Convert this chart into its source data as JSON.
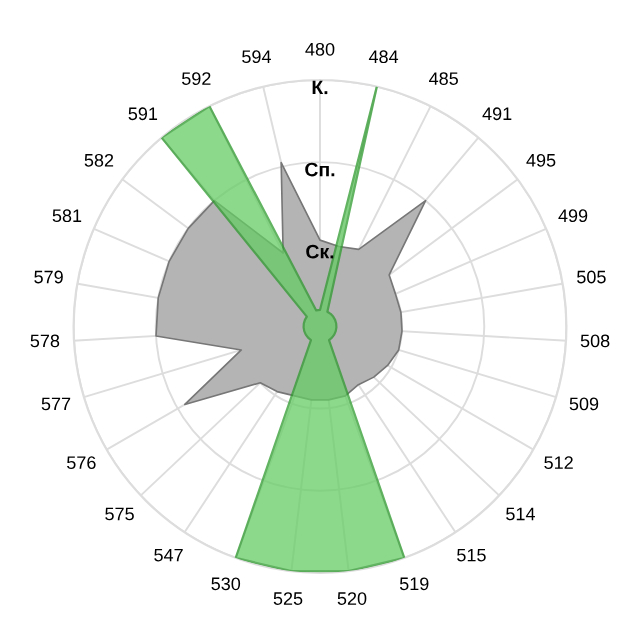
{
  "chart_data": {
    "type": "radar",
    "categories": [
      "480",
      "484",
      "485",
      "491",
      "495",
      "499",
      "505",
      "508",
      "509",
      "512",
      "514",
      "515",
      "519",
      "520",
      "525",
      "530",
      "547",
      "575",
      "576",
      "577",
      "578",
      "579",
      "581",
      "582",
      "591",
      "592",
      "594"
    ],
    "ylim": [
      0,
      3
    ],
    "yticks": [
      {
        "value": 1,
        "label": "Ск."
      },
      {
        "value": 2,
        "label": "Сп."
      },
      {
        "value": 3,
        "label": "К."
      }
    ],
    "grid": true,
    "series": [
      {
        "color": "#b4b4b4",
        "values": [
          1.05,
          1.0,
          1.05,
          2.0,
          1.05,
          1.0,
          1.0,
          1.0,
          1.0,
          0.95,
          0.9,
          0.85,
          0.9,
          0.9,
          0.9,
          0.9,
          0.95,
          1.0,
          1.9,
          1.0,
          2.0,
          2.0,
          2.0,
          2.0,
          2.0,
          1.0,
          2.05
        ]
      },
      {
        "color": "#66cc66",
        "values": [
          0.2,
          3,
          0.2,
          0.2,
          0.2,
          0.2,
          0.2,
          0.2,
          0.2,
          0.2,
          0.2,
          0.2,
          3,
          3,
          3,
          3,
          0.2,
          0.2,
          0.2,
          0.2,
          0.2,
          0.2,
          0.2,
          0.2,
          3,
          3,
          0.2
        ]
      }
    ]
  }
}
